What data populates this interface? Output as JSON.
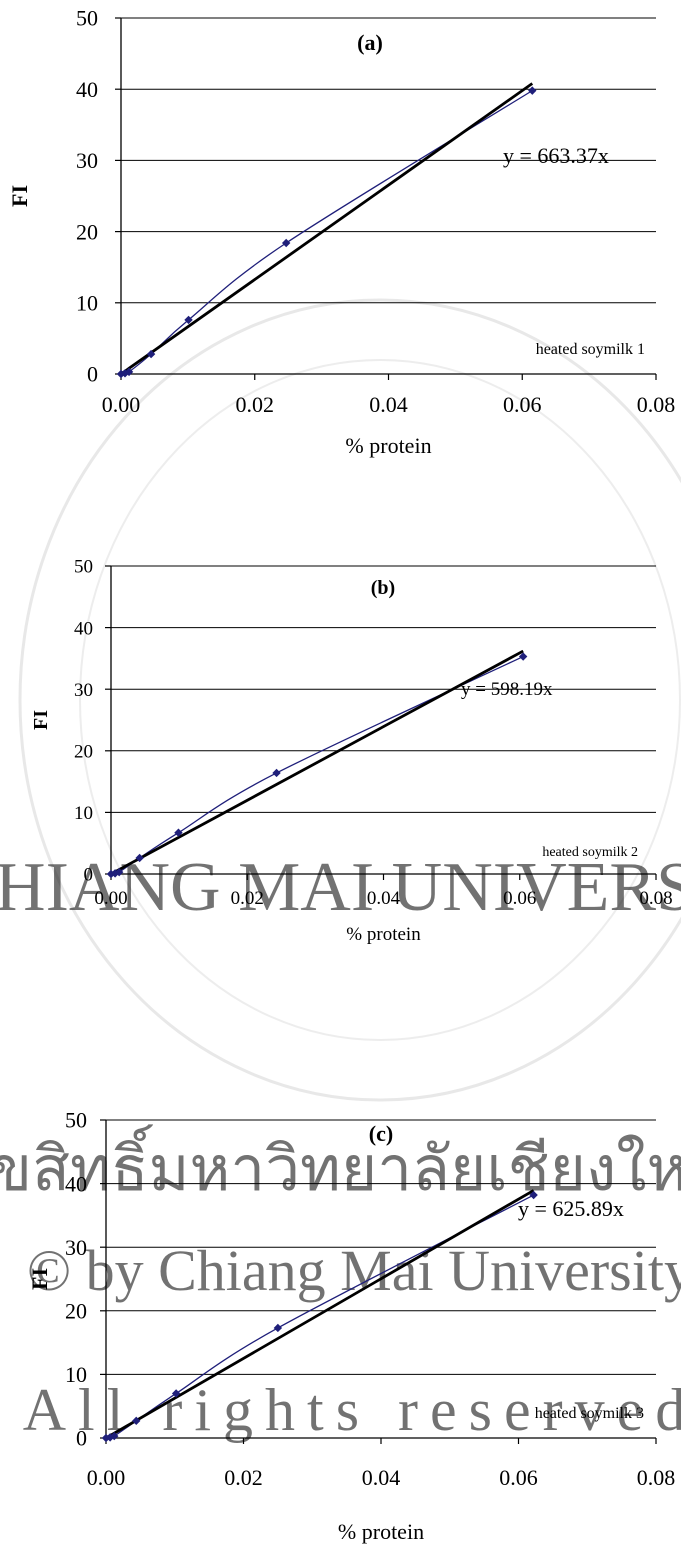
{
  "chart_data": [
    {
      "type": "scatter",
      "panel_label": "(a)",
      "xlabel": "% protein",
      "ylabel": "FI",
      "xlim": [
        0,
        0.08
      ],
      "ylim": [
        0,
        50
      ],
      "x_ticks": [
        "0.00",
        "0.02",
        "0.04",
        "0.06",
        "0.08"
      ],
      "y_ticks": [
        "0",
        "10",
        "20",
        "30",
        "40",
        "50"
      ],
      "grid": "horizontal",
      "series": [
        {
          "x": [
            0.0,
            0.0006,
            0.0012,
            0.0045,
            0.0101,
            0.0247,
            0.0615
          ],
          "y": [
            0,
            0.1,
            0.3,
            2.8,
            7.6,
            18.4,
            39.8
          ],
          "smooth_line": true,
          "color": "#1f1f7a",
          "marker": "diamond"
        }
      ],
      "trendline": {
        "slope": 663.37,
        "x_end": 0.0615,
        "color": "#000000"
      },
      "equation": "y = 663.37x",
      "annotation": "heated soymilk 1"
    },
    {
      "type": "scatter",
      "panel_label": "(b)",
      "xlabel": "% protein",
      "ylabel": "FI",
      "xlim": [
        0,
        0.08
      ],
      "ylim": [
        0,
        50
      ],
      "x_ticks": [
        "0.00",
        "0.02",
        "0.04",
        "0.06",
        "0.08"
      ],
      "y_ticks": [
        "0",
        "10",
        "20",
        "30",
        "40",
        "50"
      ],
      "grid": "horizontal",
      "series": [
        {
          "x": [
            0.0,
            0.0006,
            0.0012,
            0.0042,
            0.0099,
            0.0243,
            0.0605
          ],
          "y": [
            0,
            0.1,
            0.3,
            2.6,
            6.7,
            16.4,
            35.3
          ],
          "smooth_line": true,
          "color": "#1f1f7a",
          "marker": "diamond"
        }
      ],
      "trendline": {
        "slope": 598.19,
        "x_end": 0.0605,
        "color": "#000000"
      },
      "equation": "y = 598.19x",
      "annotation": "heated soymilk 2"
    },
    {
      "type": "scatter",
      "panel_label": "(c)",
      "xlabel": "% protein",
      "ylabel": "FI",
      "xlim": [
        0,
        0.08
      ],
      "ylim": [
        0,
        50
      ],
      "x_ticks": [
        "0.00",
        "0.02",
        "0.04",
        "0.06",
        "0.08"
      ],
      "y_ticks": [
        "0",
        "10",
        "20",
        "30",
        "40",
        "50"
      ],
      "grid": "horizontal",
      "series": [
        {
          "x": [
            0.0,
            0.0006,
            0.0012,
            0.0044,
            0.0102,
            0.025,
            0.0622
          ],
          "y": [
            0,
            0.1,
            0.3,
            2.7,
            7.0,
            17.3,
            38.2
          ],
          "smooth_line": true,
          "color": "#1f1f7a",
          "marker": "diamond"
        }
      ],
      "trendline": {
        "slope": 625.89,
        "x_end": 0.0622,
        "color": "#000000"
      },
      "equation": "y = 625.89x",
      "annotation": "heated soymilk 3"
    }
  ],
  "watermark": {
    "line1": "ลิขสิทธิ์มหาวิทยาลัยเชียงใหม่",
    "line2": "© by Chiang Mai University",
    "line3": "All rights reserved",
    "arc_text": "CHIANG MAI UNIVERSITY",
    "color": "#d0d0d0"
  }
}
